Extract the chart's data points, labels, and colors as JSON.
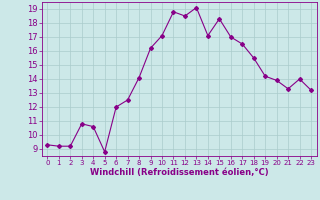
{
  "x": [
    0,
    1,
    2,
    3,
    4,
    5,
    6,
    7,
    8,
    9,
    10,
    11,
    12,
    13,
    14,
    15,
    16,
    17,
    18,
    19,
    20,
    21,
    22,
    23
  ],
  "y": [
    9.3,
    9.2,
    9.2,
    10.8,
    10.6,
    8.8,
    12.0,
    12.5,
    14.1,
    16.2,
    17.1,
    18.8,
    18.5,
    19.1,
    17.1,
    18.3,
    17.0,
    16.5,
    15.5,
    14.2,
    13.9,
    13.3,
    14.0,
    13.2
  ],
  "line_color": "#880088",
  "marker": "D",
  "marker_size": 2,
  "bg_color": "#cce8e8",
  "grid_color": "#aacccc",
  "xlabel": "Windchill (Refroidissement éolien,°C)",
  "xlabel_color": "#880088",
  "tick_color": "#880088",
  "ylim": [
    8.5,
    19.5
  ],
  "xlim": [
    -0.5,
    23.5
  ],
  "yticks": [
    9,
    10,
    11,
    12,
    13,
    14,
    15,
    16,
    17,
    18,
    19
  ],
  "xticks": [
    0,
    1,
    2,
    3,
    4,
    5,
    6,
    7,
    8,
    9,
    10,
    11,
    12,
    13,
    14,
    15,
    16,
    17,
    18,
    19,
    20,
    21,
    22,
    23
  ],
  "xlabel_fontsize": 6.0,
  "xtick_fontsize": 5.0,
  "ytick_fontsize": 6.0
}
